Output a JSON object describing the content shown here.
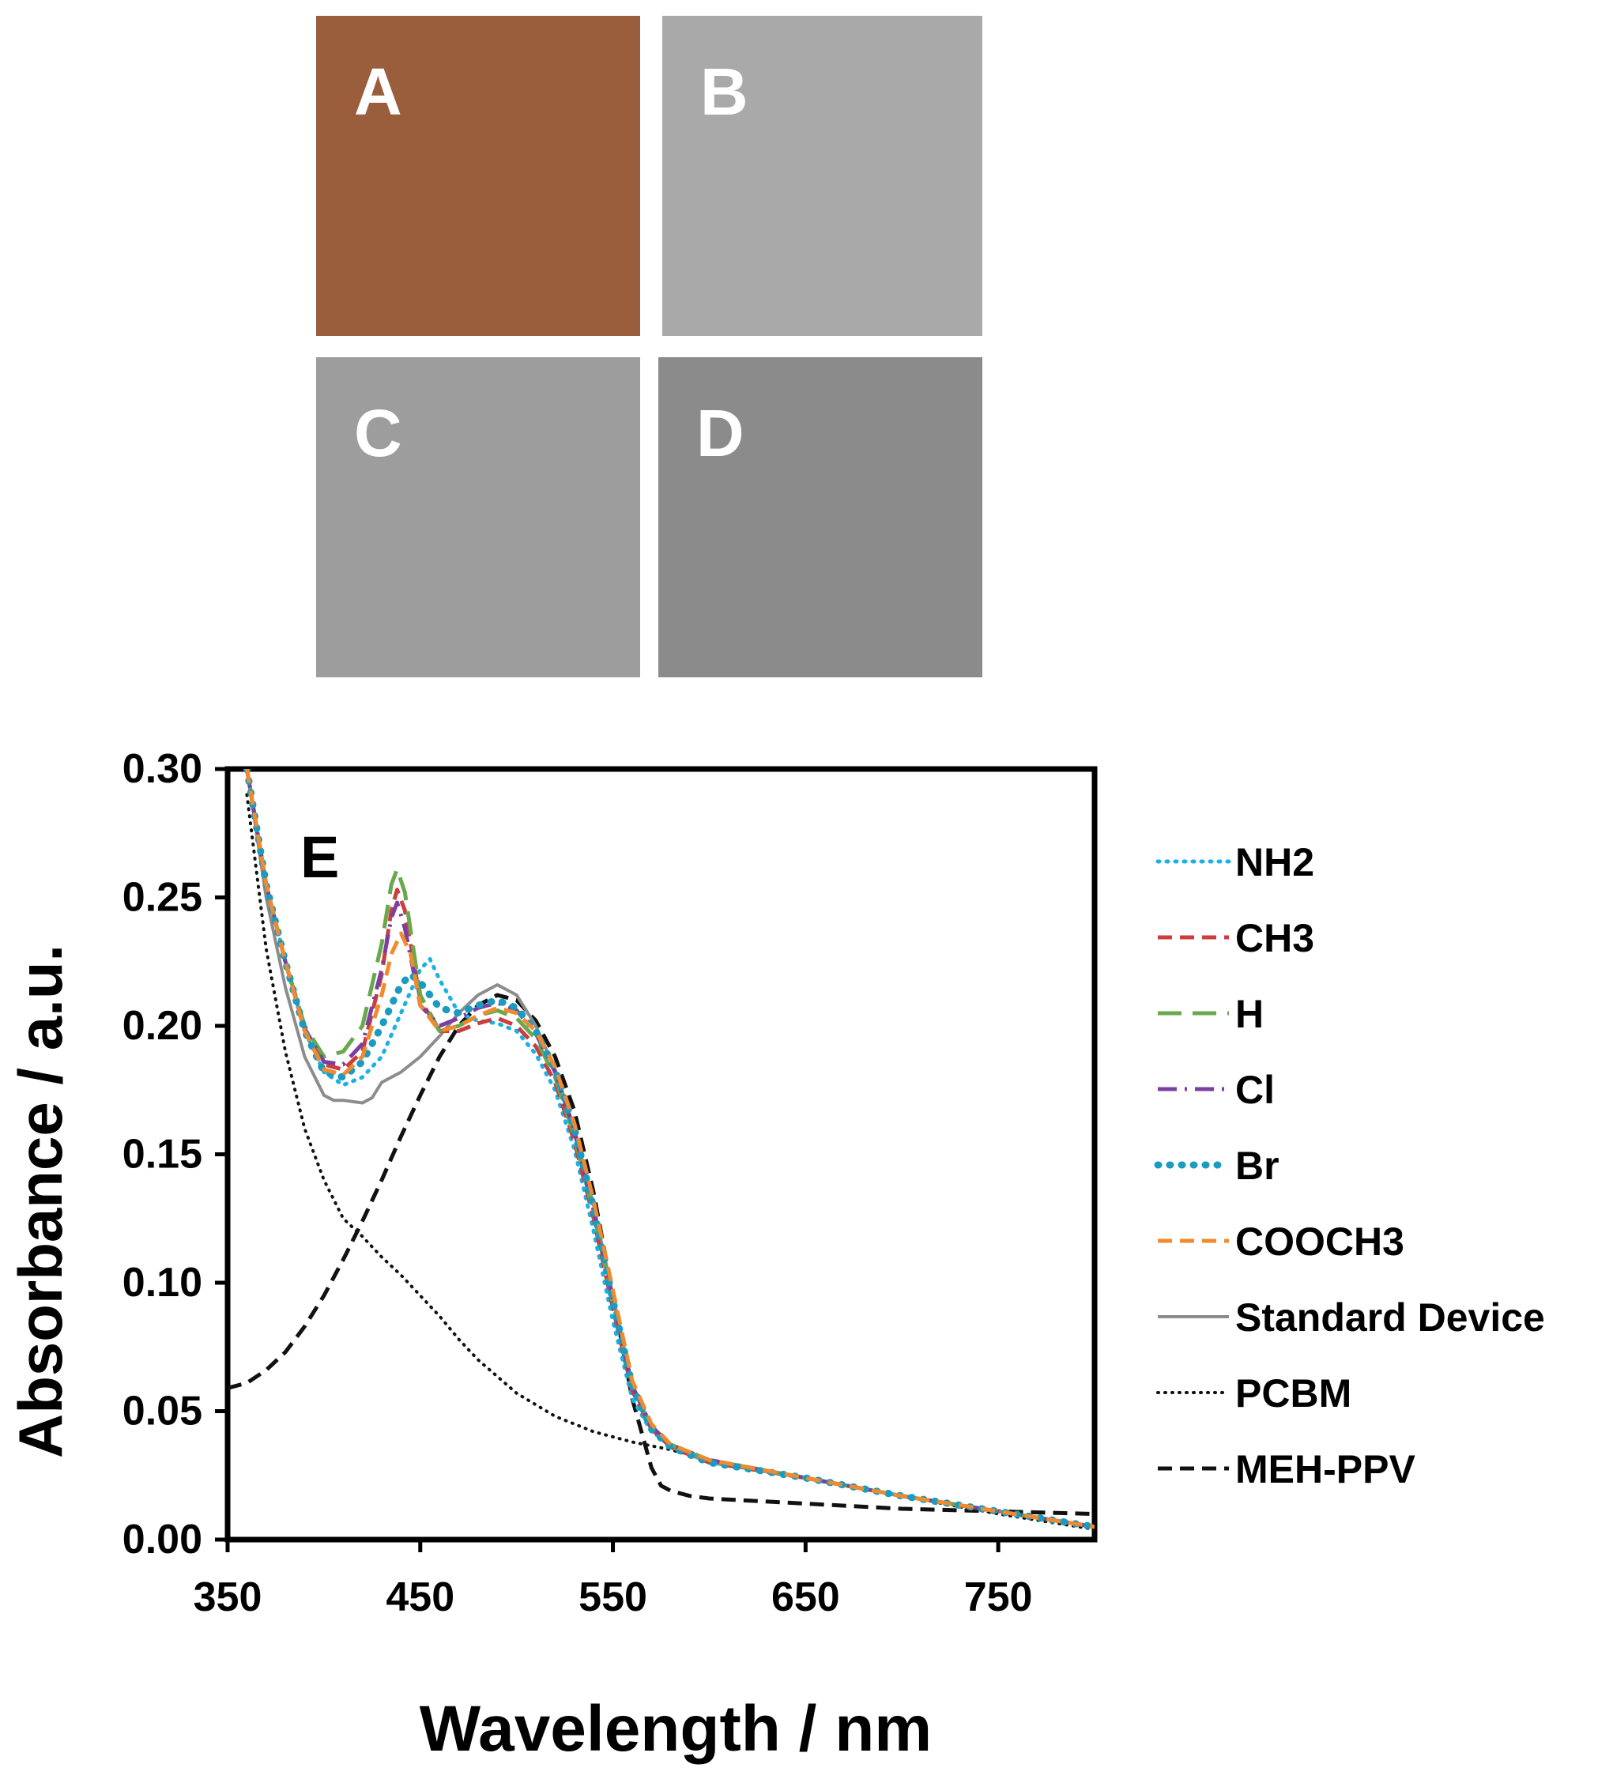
{
  "panels": [
    {
      "label": "A",
      "color": "#9a5e3c"
    },
    {
      "label": "B",
      "color": "#a9a9a9"
    },
    {
      "label": "C",
      "color": "#9d9d9d"
    },
    {
      "label": "D",
      "color": "#8b8b8b"
    }
  ],
  "chart_data": {
    "type": "line",
    "panel_label": "E",
    "xlabel": "Wavelength / nm",
    "ylabel": "Absorbance  / a.u.",
    "xlim": [
      350,
      800
    ],
    "ylim": [
      0,
      0.3
    ],
    "x_ticks": [
      350,
      450,
      550,
      650,
      750
    ],
    "x_tick_labels": [
      "350",
      "450",
      "550",
      "650",
      "750"
    ],
    "y_ticks": [
      0,
      0.05,
      0.1,
      0.15,
      0.2,
      0.25,
      0.3
    ],
    "y_tick_labels": [
      "0.00",
      "0.05",
      "0.10",
      "0.15",
      "0.20",
      "0.25",
      "0.30"
    ],
    "legend_position": "right",
    "series": [
      {
        "name": "NH2",
        "color": "#1ab2e6",
        "style": "dotted",
        "x": [
          360,
          370,
          380,
          390,
          400,
          410,
          420,
          430,
          440,
          450,
          455,
          460,
          470,
          480,
          490,
          500,
          510,
          520,
          530,
          540,
          550,
          560,
          570,
          580,
          600,
          650,
          700,
          750,
          800
        ],
        "y": [
          0.3,
          0.255,
          0.225,
          0.198,
          0.182,
          0.177,
          0.18,
          0.188,
          0.205,
          0.222,
          0.226,
          0.218,
          0.205,
          0.202,
          0.201,
          0.198,
          0.189,
          0.175,
          0.152,
          0.12,
          0.085,
          0.055,
          0.042,
          0.037,
          0.031,
          0.024,
          0.017,
          0.011,
          0.005
        ]
      },
      {
        "name": "CH3",
        "color": "#cc3d3d",
        "style": "dashed",
        "x": [
          360,
          370,
          380,
          390,
          400,
          410,
          420,
          430,
          435,
          438,
          442,
          450,
          460,
          470,
          480,
          490,
          500,
          510,
          520,
          530,
          540,
          550,
          560,
          570,
          580,
          600,
          650,
          700,
          750,
          800
        ],
        "y": [
          0.3,
          0.255,
          0.225,
          0.198,
          0.185,
          0.183,
          0.19,
          0.22,
          0.245,
          0.253,
          0.245,
          0.21,
          0.198,
          0.198,
          0.201,
          0.203,
          0.2,
          0.192,
          0.178,
          0.155,
          0.125,
          0.09,
          0.058,
          0.043,
          0.036,
          0.03,
          0.024,
          0.017,
          0.011,
          0.005
        ]
      },
      {
        "name": "H",
        "color": "#6aa84f",
        "style": "longdash",
        "x": [
          360,
          370,
          380,
          390,
          400,
          410,
          420,
          430,
          435,
          438,
          442,
          450,
          460,
          470,
          480,
          490,
          500,
          510,
          520,
          530,
          540,
          550,
          560,
          570,
          580,
          600,
          650,
          700,
          750,
          800
        ],
        "y": [
          0.3,
          0.255,
          0.225,
          0.2,
          0.188,
          0.19,
          0.2,
          0.232,
          0.255,
          0.261,
          0.252,
          0.212,
          0.198,
          0.2,
          0.204,
          0.206,
          0.203,
          0.195,
          0.18,
          0.157,
          0.127,
          0.092,
          0.06,
          0.044,
          0.037,
          0.031,
          0.024,
          0.017,
          0.011,
          0.005
        ]
      },
      {
        "name": "Cl",
        "color": "#7b3fa0",
        "style": "dashdot",
        "x": [
          360,
          370,
          380,
          390,
          400,
          410,
          420,
          430,
          435,
          438,
          442,
          450,
          460,
          470,
          480,
          490,
          500,
          510,
          520,
          530,
          540,
          550,
          560,
          570,
          580,
          600,
          650,
          700,
          750,
          800
        ],
        "y": [
          0.3,
          0.255,
          0.225,
          0.199,
          0.186,
          0.185,
          0.193,
          0.222,
          0.242,
          0.248,
          0.238,
          0.208,
          0.2,
          0.203,
          0.207,
          0.209,
          0.206,
          0.197,
          0.182,
          0.159,
          0.128,
          0.093,
          0.06,
          0.044,
          0.037,
          0.031,
          0.024,
          0.017,
          0.011,
          0.005
        ]
      },
      {
        "name": "Br",
        "color": "#1a9bbf",
        "style": "bigdots",
        "x": [
          360,
          370,
          380,
          390,
          400,
          410,
          420,
          430,
          440,
          445,
          450,
          460,
          470,
          480,
          490,
          500,
          510,
          520,
          530,
          540,
          550,
          560,
          570,
          580,
          600,
          650,
          700,
          750,
          800
        ],
        "y": [
          0.3,
          0.255,
          0.225,
          0.198,
          0.182,
          0.18,
          0.186,
          0.2,
          0.216,
          0.22,
          0.217,
          0.207,
          0.205,
          0.208,
          0.21,
          0.207,
          0.198,
          0.183,
          0.16,
          0.129,
          0.093,
          0.06,
          0.043,
          0.036,
          0.03,
          0.024,
          0.017,
          0.011,
          0.005
        ]
      },
      {
        "name": "COOCH3",
        "color": "#f08a2e",
        "style": "dashed",
        "x": [
          360,
          370,
          380,
          390,
          400,
          410,
          420,
          430,
          435,
          440,
          445,
          450,
          460,
          470,
          480,
          490,
          500,
          510,
          520,
          530,
          540,
          550,
          560,
          570,
          580,
          600,
          650,
          700,
          750,
          800
        ],
        "y": [
          0.3,
          0.255,
          0.225,
          0.198,
          0.183,
          0.181,
          0.188,
          0.212,
          0.228,
          0.236,
          0.228,
          0.208,
          0.198,
          0.2,
          0.204,
          0.207,
          0.205,
          0.198,
          0.184,
          0.162,
          0.132,
          0.097,
          0.062,
          0.045,
          0.037,
          0.031,
          0.024,
          0.017,
          0.011,
          0.005
        ]
      },
      {
        "name": "Standard Device",
        "color": "#8c8c8c",
        "style": "solid",
        "x": [
          360,
          370,
          380,
          390,
          400,
          405,
          410,
          420,
          425,
          430,
          440,
          450,
          460,
          470,
          480,
          490,
          500,
          510,
          520,
          530,
          540,
          550,
          560,
          570,
          580,
          600,
          650,
          700,
          750,
          800
        ],
        "y": [
          0.3,
          0.25,
          0.215,
          0.188,
          0.173,
          0.171,
          0.171,
          0.17,
          0.172,
          0.178,
          0.182,
          0.188,
          0.196,
          0.205,
          0.212,
          0.216,
          0.212,
          0.2,
          0.183,
          0.16,
          0.13,
          0.095,
          0.06,
          0.043,
          0.036,
          0.03,
          0.024,
          0.017,
          0.011,
          0.005
        ]
      },
      {
        "name": "PCBM",
        "color": "#111111",
        "style": "finedots",
        "x": [
          360,
          370,
          380,
          390,
          400,
          410,
          420,
          430,
          440,
          450,
          460,
          470,
          480,
          500,
          520,
          540,
          560,
          580,
          600,
          650,
          700,
          750,
          800
        ],
        "y": [
          0.29,
          0.23,
          0.19,
          0.16,
          0.14,
          0.125,
          0.118,
          0.11,
          0.103,
          0.095,
          0.087,
          0.078,
          0.07,
          0.057,
          0.048,
          0.042,
          0.038,
          0.035,
          0.031,
          0.024,
          0.017,
          0.01,
          0.004
        ]
      },
      {
        "name": "MEH-PPV",
        "color": "#111111",
        "style": "dashed",
        "x": [
          350,
          360,
          370,
          380,
          390,
          400,
          410,
          420,
          430,
          440,
          450,
          460,
          470,
          480,
          490,
          500,
          510,
          520,
          530,
          540,
          550,
          560,
          570,
          575,
          580,
          590,
          600,
          650,
          700,
          750,
          800
        ],
        "y": [
          0.059,
          0.061,
          0.066,
          0.073,
          0.083,
          0.095,
          0.109,
          0.124,
          0.14,
          0.157,
          0.173,
          0.188,
          0.2,
          0.208,
          0.212,
          0.21,
          0.202,
          0.188,
          0.167,
          0.135,
          0.095,
          0.055,
          0.028,
          0.021,
          0.019,
          0.017,
          0.016,
          0.014,
          0.012,
          0.011,
          0.01
        ]
      }
    ]
  }
}
